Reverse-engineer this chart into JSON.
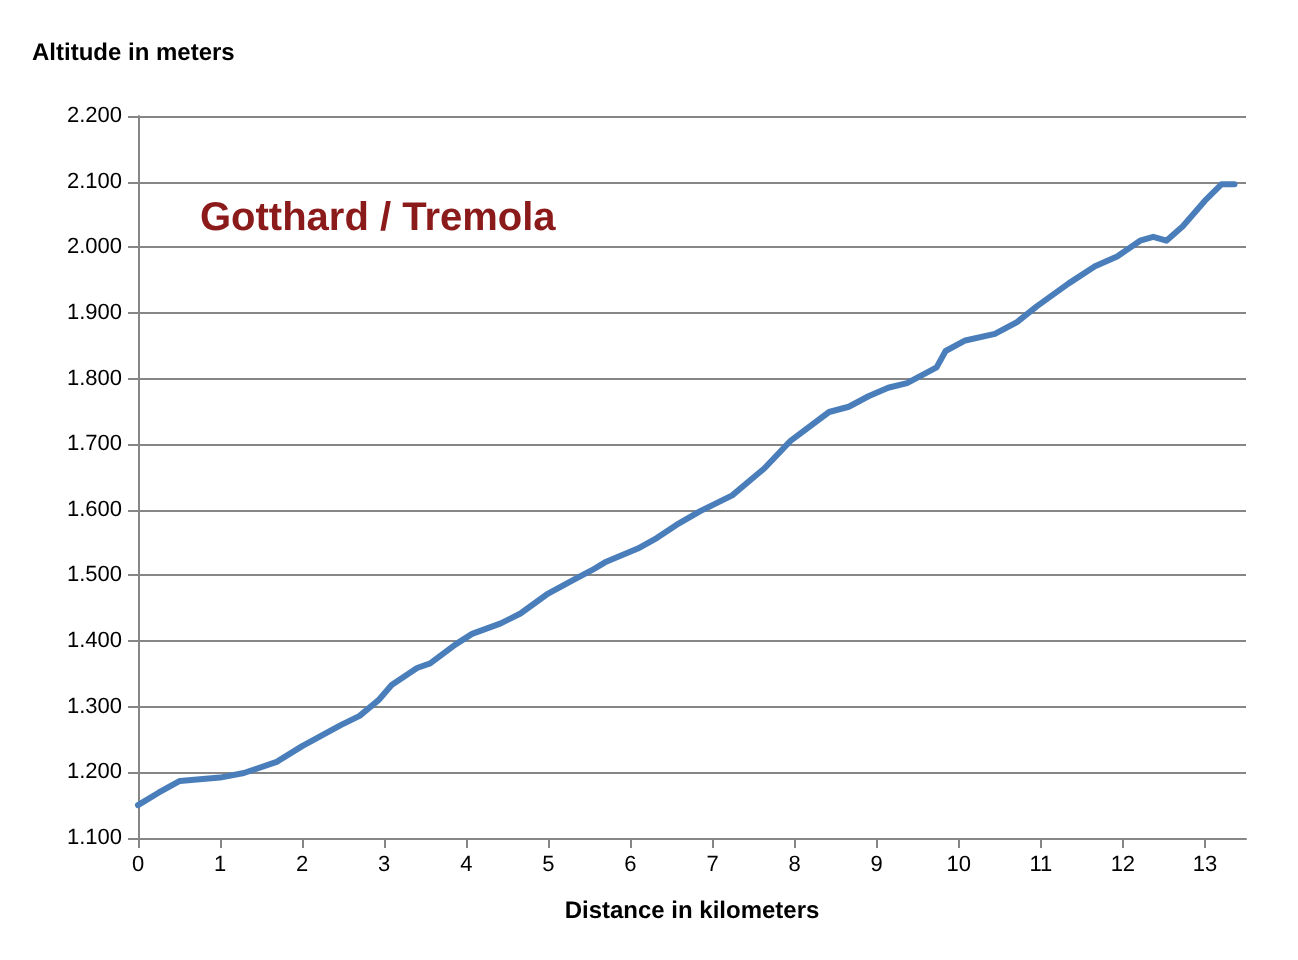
{
  "chart_data": {
    "type": "line",
    "title": "Gotthard / Tremola",
    "xlabel": "Distance in kilometers",
    "ylabel": "Altitude in meters",
    "x": [
      0,
      0.25,
      0.51,
      1.0,
      1.29,
      1.69,
      2.0,
      2.47,
      2.7,
      2.93,
      3.09,
      3.4,
      3.56,
      3.87,
      4.07,
      4.42,
      4.66,
      4.98,
      5.3,
      5.53,
      5.69,
      6.09,
      6.32,
      6.56,
      6.85,
      7.24,
      7.63,
      7.95,
      8.42,
      8.66,
      8.9,
      9.14,
      9.37,
      9.73,
      9.84,
      10.08,
      10.44,
      10.71,
      10.95,
      11.34,
      11.66,
      11.93,
      12.21,
      12.37,
      12.53,
      12.73,
      13.0,
      13.2,
      13.36
    ],
    "series": [
      {
        "color": "#4a7ebb",
        "values": [
          1150,
          1169,
          1187,
          1192,
          1199,
          1216,
          1240,
          1272,
          1286,
          1310,
          1333,
          1359,
          1366,
          1395,
          1411,
          1427,
          1442,
          1471,
          1493,
          1508,
          1520,
          1541,
          1557,
          1577,
          1598,
          1622,
          1663,
          1705,
          1749,
          1757,
          1773,
          1786,
          1793,
          1817,
          1842,
          1858,
          1868,
          1886,
          1910,
          1945,
          1971,
          1986,
          2010,
          2016,
          2010,
          2032,
          2071,
          2096,
          2096
        ]
      }
    ],
    "xlim": [
      0,
      13.5
    ],
    "xticks": [
      0,
      1,
      2,
      3,
      4,
      5,
      6,
      7,
      8,
      9,
      10,
      11,
      12,
      13
    ],
    "ylim": [
      1100,
      2200
    ],
    "yticks": [
      {
        "value": 1100,
        "label": "1.100"
      },
      {
        "value": 1200,
        "label": "1.200"
      },
      {
        "value": 1300,
        "label": "1.300"
      },
      {
        "value": 1400,
        "label": "1.400"
      },
      {
        "value": 1500,
        "label": "1.500"
      },
      {
        "value": 1600,
        "label": "1.600"
      },
      {
        "value": 1700,
        "label": "1.700"
      },
      {
        "value": 1800,
        "label": "1.800"
      },
      {
        "value": 1900,
        "label": "1.900"
      },
      {
        "value": 2000,
        "label": "2.000"
      },
      {
        "value": 2100,
        "label": "2.100"
      },
      {
        "value": 2200,
        "label": "2.200"
      }
    ],
    "grid": "y",
    "marker": "none",
    "line_style": "solid"
  }
}
